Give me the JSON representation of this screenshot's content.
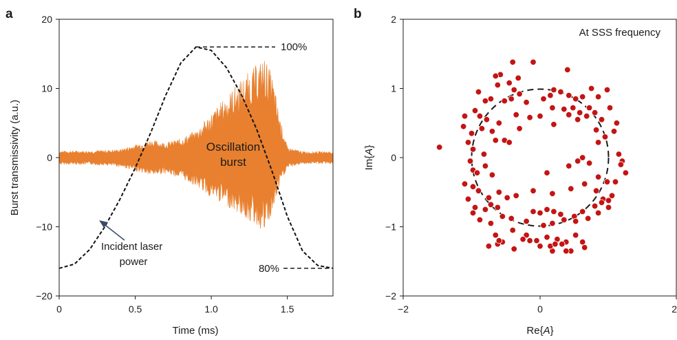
{
  "chart_data": [
    {
      "panel": "a",
      "type": "line",
      "xlabel": "Time (ms)",
      "ylabel": "Burst transmissivity (a.u.)",
      "xlim": [
        0,
        1.8
      ],
      "ylim": [
        -20,
        20
      ],
      "x_ticks": [
        "0",
        "0.5",
        "1.0",
        "1.5"
      ],
      "x_tick_values": [
        0,
        0.5,
        1.0,
        1.5
      ],
      "y_ticks": [
        "20",
        "10",
        "0",
        "−10",
        "−20"
      ],
      "y_tick_values": [
        20,
        10,
        0,
        -10,
        -20
      ],
      "series": [
        {
          "name": "Oscillation burst",
          "color": "#e8802f",
          "envelope_upper": {
            "x": [
              0,
              0.2,
              0.4,
              0.6,
              0.7,
              0.8,
              0.9,
              1.0,
              1.1,
              1.2,
              1.3,
              1.35,
              1.4,
              1.45,
              1.5,
              1.6,
              1.8
            ],
            "y": [
              1.0,
              1.0,
              1.2,
              2.6,
              2.2,
              2.8,
              4.0,
              6.5,
              9.0,
              11.5,
              13.5,
              14.6,
              12.0,
              6.0,
              1.5,
              0.9,
              0.9
            ]
          },
          "envelope_lower": {
            "x": [
              0,
              0.2,
              0.4,
              0.6,
              0.7,
              0.8,
              0.9,
              1.0,
              1.1,
              1.2,
              1.3,
              1.35,
              1.4,
              1.45,
              1.5,
              1.6,
              1.8
            ],
            "y": [
              -1.0,
              -1.0,
              -1.3,
              -2.6,
              -2.3,
              -3.0,
              -4.2,
              -5.8,
              -7.0,
              -8.5,
              -10.0,
              -11.0,
              -8.5,
              -4.0,
              -1.5,
              -0.9,
              -0.9
            ]
          }
        },
        {
          "name": "Incident laser power",
          "color": "#111111",
          "style": "dashed",
          "x": [
            0,
            0.1,
            0.2,
            0.3,
            0.4,
            0.5,
            0.6,
            0.7,
            0.8,
            0.9,
            1.0,
            1.1,
            1.2,
            1.3,
            1.4,
            1.5,
            1.6,
            1.7,
            1.8
          ],
          "y": [
            -16,
            -15.4,
            -13.3,
            -10.0,
            -6.0,
            -1.5,
            3.5,
            9.0,
            13.7,
            16.0,
            15.5,
            13.0,
            9.0,
            4.0,
            -2.0,
            -8.5,
            -13.5,
            -15.6,
            -16.0
          ]
        }
      ],
      "reference_lines": [
        {
          "label": "100%",
          "y": 16
        },
        {
          "label": "80%",
          "y": -16
        }
      ],
      "annotations": {
        "burst_line1": "Oscillation",
        "burst_line2": "burst",
        "laser_line1": "Incident laser",
        "laser_line2": "power"
      }
    },
    {
      "panel": "b",
      "type": "scatter",
      "title": "At SSS frequency",
      "xlabel_prefix": "Re{",
      "xlabel_var": "A",
      "xlabel_suffix": "}",
      "ylabel_prefix": "Im{",
      "ylabel_var": "A",
      "ylabel_suffix": "}",
      "xlim": [
        -2,
        2
      ],
      "ylim": [
        -2,
        2
      ],
      "x_ticks": [
        "−2",
        "0",
        "2"
      ],
      "x_tick_values": [
        -2,
        0,
        2
      ],
      "y_ticks": [
        "2",
        "1",
        "0",
        "−1",
        "−2"
      ],
      "y_tick_values": [
        2,
        1,
        0,
        -1,
        -2
      ],
      "reference_circle_radius": 1.0,
      "marker_color": "#c41414",
      "points": {
        "x": [
          -1.47,
          -0.58,
          -0.4,
          -0.32,
          -0.1,
          0.4,
          -0.65,
          -0.62,
          -0.45,
          -0.38,
          -0.3,
          0.2,
          0.3,
          0.75,
          0.98,
          -0.9,
          -0.8,
          -0.72,
          -0.52,
          -0.42,
          -0.2,
          0.05,
          0.15,
          0.42,
          0.52,
          0.62,
          0.72,
          0.85,
          1.02,
          -1.1,
          -0.95,
          -0.88,
          -0.78,
          -0.6,
          -0.35,
          -0.15,
          0.18,
          0.35,
          0.48,
          0.58,
          0.8,
          0.9,
          1.12,
          -1.12,
          -1.0,
          -0.85,
          -0.7,
          -0.52,
          -0.45,
          -0.3,
          0.0,
          0.2,
          0.42,
          0.55,
          0.68,
          0.82,
          0.95,
          1.08,
          -1.05,
          -0.98,
          -0.82,
          -0.65,
          0.62,
          0.85,
          1.15,
          1.2,
          1.25,
          -1.02,
          -0.98,
          -0.92,
          -0.8,
          -0.7,
          0.1,
          0.42,
          0.55,
          0.72,
          0.85,
          0.98,
          1.1,
          1.18,
          -1.1,
          -0.98,
          -0.9,
          -0.75,
          -0.6,
          -0.35,
          -0.1,
          0.18,
          0.45,
          0.65,
          0.82,
          0.92,
          1.05,
          -1.05,
          -0.95,
          -0.8,
          -0.72,
          -0.62,
          -0.48,
          -0.1,
          0.0,
          0.1,
          0.2,
          0.3,
          0.5,
          0.62,
          0.8,
          0.9,
          1.0,
          -0.98,
          -0.88,
          -0.72,
          -0.55,
          -0.42,
          -0.2,
          0.05,
          0.18,
          0.35,
          0.52,
          0.7,
          0.85,
          1.0,
          -0.65,
          -0.55,
          -0.4,
          -0.2,
          -0.05,
          0.1,
          0.25,
          0.38,
          0.52,
          0.62,
          -0.75,
          -0.62,
          -0.38,
          -0.15,
          0.0,
          0.18,
          0.32,
          0.45,
          0.65,
          -0.6,
          -0.25,
          0.15,
          0.38,
          0.22
        ],
        "y": [
          0.15,
          1.2,
          1.38,
          1.15,
          1.38,
          1.27,
          1.18,
          1.05,
          1.08,
          0.98,
          0.92,
          0.98,
          0.95,
          1.0,
          0.98,
          0.95,
          0.82,
          0.85,
          0.82,
          0.85,
          0.8,
          0.85,
          0.9,
          0.9,
          0.85,
          0.88,
          0.72,
          0.88,
          0.72,
          0.6,
          0.68,
          0.6,
          0.55,
          0.5,
          0.62,
          0.58,
          0.72,
          0.7,
          0.72,
          0.65,
          0.65,
          0.55,
          0.5,
          0.45,
          0.35,
          0.42,
          0.38,
          0.25,
          0.22,
          0.42,
          0.6,
          0.48,
          0.62,
          0.55,
          0.6,
          0.4,
          0.3,
          0.38,
          0.22,
          0.12,
          0.05,
          0.25,
          0.0,
          0.22,
          0.05,
          -0.05,
          -0.22,
          -0.05,
          -0.18,
          -0.22,
          -0.12,
          -0.25,
          -0.22,
          -0.12,
          -0.05,
          -0.08,
          -0.28,
          -0.35,
          -0.35,
          -0.1,
          -0.38,
          -0.42,
          -0.48,
          -0.58,
          -0.5,
          -0.55,
          -0.48,
          -0.52,
          -0.45,
          -0.38,
          -0.48,
          -0.6,
          -0.55,
          -0.6,
          -0.72,
          -0.75,
          -0.68,
          -0.72,
          -0.58,
          -0.78,
          -0.8,
          -0.75,
          -0.78,
          -0.82,
          -0.85,
          -0.78,
          -0.7,
          -0.65,
          -0.62,
          -0.8,
          -0.9,
          -0.95,
          -0.85,
          -0.88,
          -0.92,
          -0.98,
          -0.95,
          -0.9,
          -0.92,
          -0.88,
          -0.8,
          -0.72,
          -1.12,
          -1.22,
          -1.05,
          -1.12,
          -1.2,
          -1.15,
          -1.18,
          -1.22,
          -1.12,
          -1.22,
          -1.28,
          -1.25,
          -1.32,
          -1.2,
          -1.28,
          -1.35,
          -1.25,
          -1.35,
          -1.3,
          -1.2,
          -1.18,
          -1.28,
          -1.35,
          -1.25
        ]
      }
    }
  ],
  "panels": {
    "a": {
      "label": "a"
    },
    "b": {
      "label": "b"
    }
  }
}
